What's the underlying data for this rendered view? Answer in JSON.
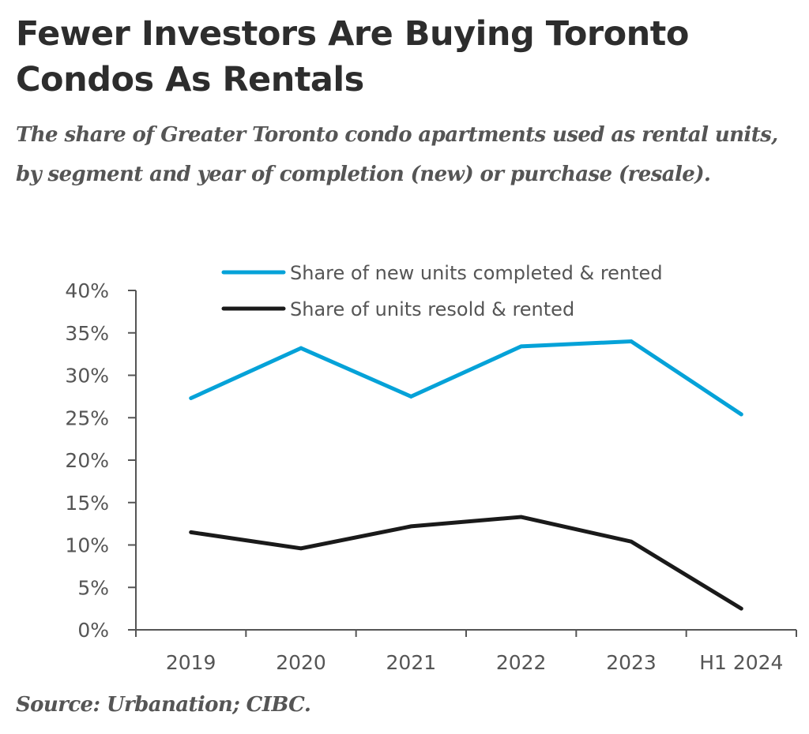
{
  "header": {
    "title": "Fewer Investors Are Buying Toronto Condos As Rentals",
    "subtitle": "The share of Greater Toronto condo apartments used as rental units, by segment and year of completion (new) or purchase (resale)."
  },
  "footer": {
    "source": "Source: Urbanation; CIBC."
  },
  "chart_data": {
    "type": "line",
    "title": "Fewer Investors Are Buying Toronto Condos As Rentals",
    "subtitle": "The share of Greater Toronto condo apartments used as rental units, by segment and year of completion (new) or purchase (resale).",
    "xlabel": "",
    "ylabel": "",
    "categories": [
      "2019",
      "2020",
      "2021",
      "2022",
      "2023",
      "H1 2024"
    ],
    "ylim": [
      0,
      40
    ],
    "yticks": [
      0,
      5,
      10,
      15,
      20,
      25,
      30,
      35,
      40
    ],
    "ytick_labels": [
      "0%",
      "5%",
      "10%",
      "15%",
      "20%",
      "25%",
      "30%",
      "35%",
      "40%"
    ],
    "grid": false,
    "legend_position": "top",
    "series": [
      {
        "name": "Share of new units completed & rented",
        "color": "#05a2d8",
        "values": [
          27.3,
          33.2,
          27.5,
          33.4,
          34.0,
          25.4
        ]
      },
      {
        "name": "Share of units resold & rented",
        "color": "#1a1a1a",
        "values": [
          11.5,
          9.6,
          12.2,
          13.3,
          10.4,
          2.5
        ]
      }
    ],
    "source": "Source: Urbanation; CIBC."
  }
}
